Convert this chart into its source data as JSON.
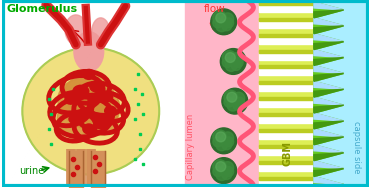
{
  "border_color": "#00BBCC",
  "border_width": 3,
  "left_bg": "#FFFFFF",
  "middle_bg": "#FFB6C8",
  "gbm_bg": "#DDEE55",
  "capsule_bg": "#AAEEFF",
  "title_text": "Glomerulus",
  "title_color": "#00AA00",
  "urine_text": "urine",
  "urine_color": "#008800",
  "flow_text": "flow",
  "flow_color": "#FF3333",
  "capillary_text": "Capillary lumen",
  "capillary_color": "#FF5566",
  "gbm_text": "GBM",
  "gbm_color": "#889900",
  "capsule_text": "capsule side",
  "capsule_color": "#44AACC",
  "fig_width": 3.71,
  "fig_height": 1.89,
  "dpi": 100
}
